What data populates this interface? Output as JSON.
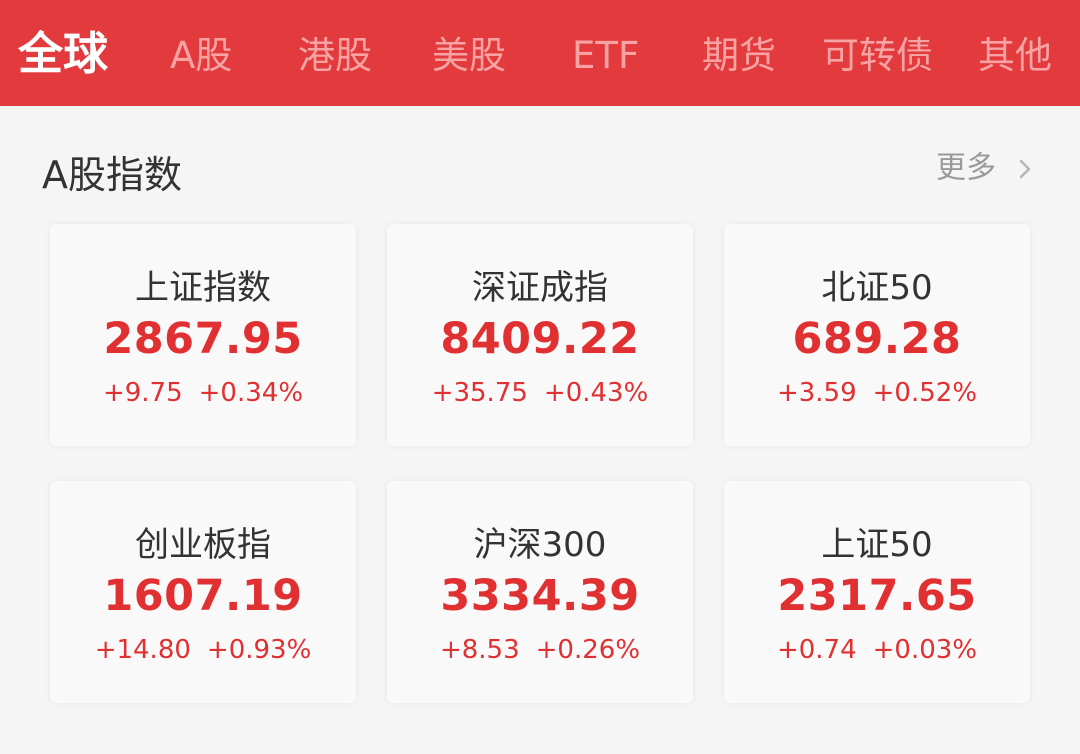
{
  "tabs": [
    {
      "label": "全球",
      "active": true
    },
    {
      "label": "A股",
      "active": false
    },
    {
      "label": "港股",
      "active": false
    },
    {
      "label": "美股",
      "active": false
    },
    {
      "label": "ETF",
      "active": false
    },
    {
      "label": "期货",
      "active": false
    },
    {
      "label": "可转债",
      "active": false
    },
    {
      "label": "其他",
      "active": false
    }
  ],
  "section": {
    "title": "A股指数",
    "more_label": "更多",
    "more_icon": "chevron-right-icon"
  },
  "indices": [
    {
      "name": "上证指数",
      "value": "2867.95",
      "change": "+9.75",
      "change_pct": "+0.34%"
    },
    {
      "name": "深证成指",
      "value": "8409.22",
      "change": "+35.75",
      "change_pct": "+0.43%"
    },
    {
      "name": "北证50",
      "value": "689.28",
      "change": "+3.59",
      "change_pct": "+0.52%"
    },
    {
      "name": "创业板指",
      "value": "1607.19",
      "change": "+14.80",
      "change_pct": "+0.93%"
    },
    {
      "name": "沪深300",
      "value": "3334.39",
      "change": "+8.53",
      "change_pct": "+0.26%"
    },
    {
      "name": "上证50",
      "value": "2317.65",
      "change": "+0.74",
      "change_pct": "+0.03%"
    }
  ],
  "colors": {
    "header_bg": "#e33a3d",
    "tab_active": "#ffffff",
    "tab_inactive": "#f7a3a4",
    "up": "#e03032",
    "page_bg": "#f5f5f5"
  }
}
